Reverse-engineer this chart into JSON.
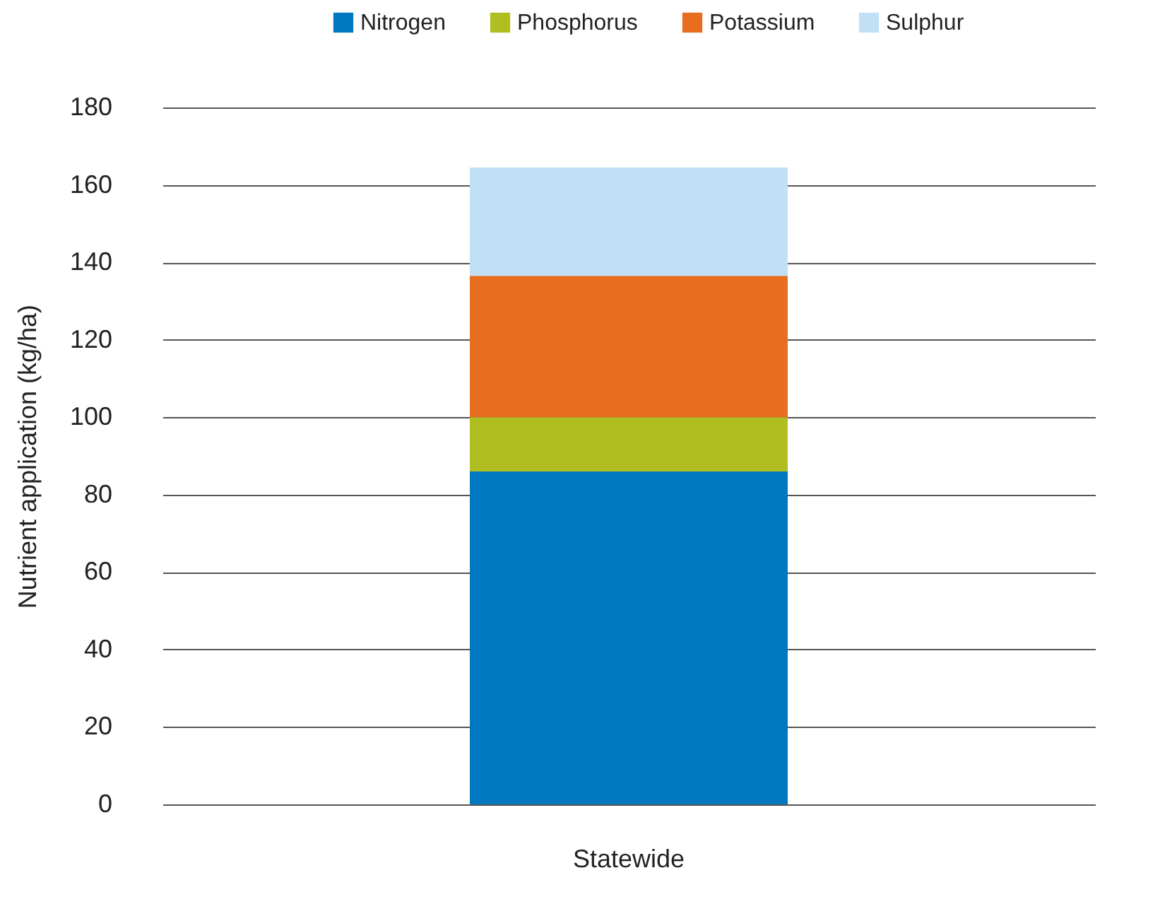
{
  "chart_data": {
    "type": "bar",
    "stacked": true,
    "categories": [
      "Statewide"
    ],
    "ylabel": "Nutrient application (kg/ha)",
    "series": [
      {
        "name": "Nitrogen",
        "color": "#0079c1",
        "values": [
          86
        ]
      },
      {
        "name": "Phosphorus",
        "color": "#b0be22",
        "values": [
          14
        ]
      },
      {
        "name": "Potassium",
        "color": "#e86e1f",
        "values": [
          36.5
        ]
      },
      {
        "name": "Sulphur",
        "color": "#c2e0f5",
        "values": [
          28
        ]
      }
    ],
    "ylim": [
      0,
      180
    ],
    "yticks": [
      0,
      20,
      40,
      60,
      80,
      100,
      120,
      140,
      160,
      180
    ],
    "grid": "y",
    "legend": "top right"
  }
}
